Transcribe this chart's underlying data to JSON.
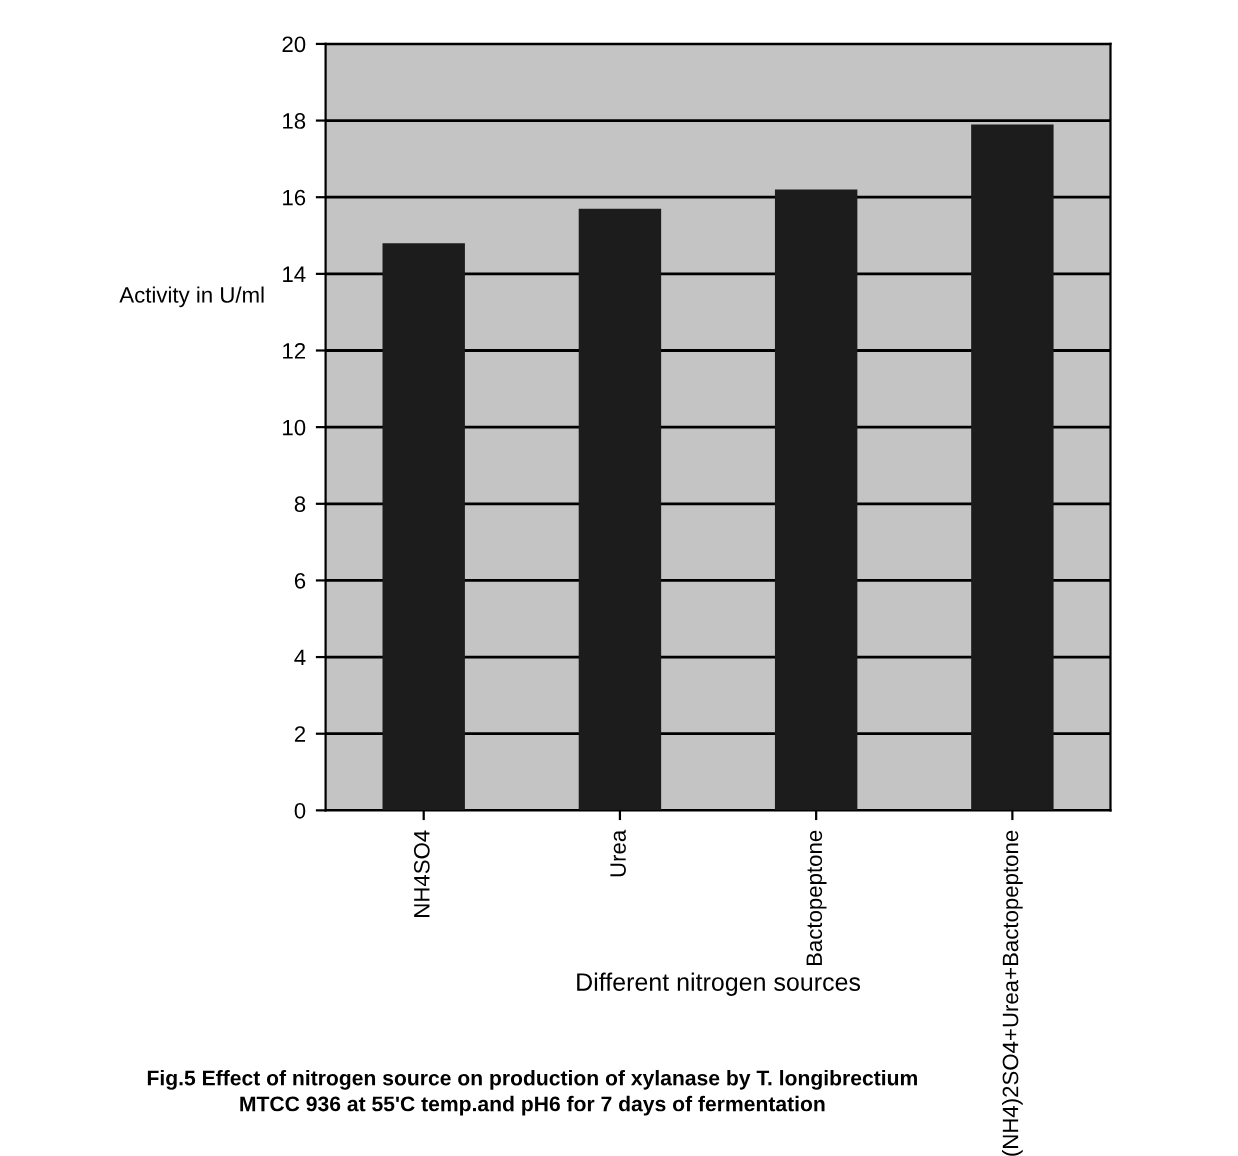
{
  "chart_data": {
    "type": "bar",
    "xlabel": "Different nitrogen sources",
    "ylabel": "Activity in U/ml",
    "categories": [
      "NH4SO4",
      "Urea",
      "Bactopeptone",
      "(NH4)2SO4+Urea+Bactopeptone"
    ],
    "values": [
      14.8,
      15.7,
      16.2,
      17.9
    ],
    "color": "#1c1c1c",
    "ylim": [
      0,
      20
    ],
    "yticks": [
      0,
      2,
      4,
      6,
      8,
      10,
      12,
      14,
      16,
      18,
      20
    ],
    "grid": "y",
    "legend": false,
    "annotations": [
      "Fig.5 Effect of nitrogen source on production of xylanase by T. longibrectium\nMTCC 936 at 55'C temp.and pH6 for 7 days of fermentation"
    ]
  }
}
